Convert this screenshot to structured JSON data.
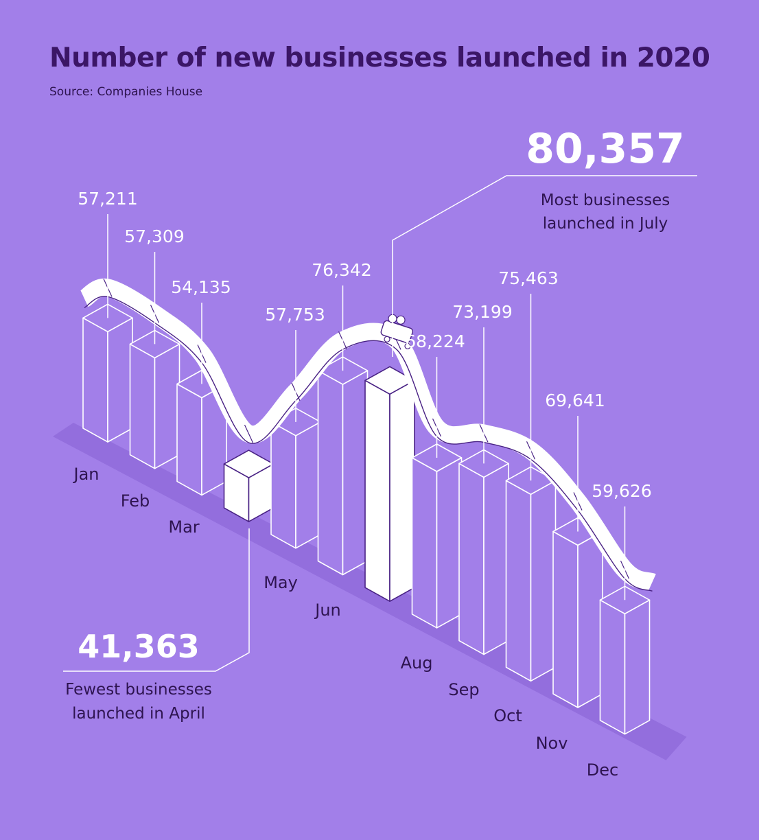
{
  "header": {
    "title": "Number of new businesses launched in 2020",
    "subtitle": "Source: Companies House"
  },
  "colors": {
    "background": "#a27fe9",
    "title": "#3b1666",
    "bar_face": "#a27fe9",
    "highlight_bar": "#ffffff",
    "line": "#ffffff",
    "shadow": "#8e68d8",
    "month_label": "#2e1450"
  },
  "chart_data": {
    "type": "bar",
    "title": "Number of new businesses launched in 2020",
    "categories": [
      "Jan",
      "Feb",
      "Mar",
      "Apr",
      "May",
      "Jun",
      "Jul",
      "Aug",
      "Sep",
      "Oct",
      "Nov",
      "Dec"
    ],
    "category_labels": [
      "Jan",
      "Feb",
      "Mar",
      "",
      "May",
      "Jun",
      "",
      "Aug",
      "Sep",
      "Oct",
      "Nov",
      "Dec"
    ],
    "values": [
      57211,
      57309,
      54135,
      41363,
      57753,
      76342,
      80357,
      68224,
      73199,
      75463,
      69641,
      59626
    ],
    "value_labels": [
      "57,211",
      "57,309",
      "54,135",
      "41,363",
      "57,753",
      "76,342",
      "80,357",
      "68,224",
      "73,199",
      "75,463",
      "69,641",
      "59,626"
    ],
    "highlighted": [
      "Apr",
      "Jul"
    ],
    "annotations": {
      "max": {
        "value": "80,357",
        "text_line1": "Most businesses",
        "text_line2": "launched in July"
      },
      "min": {
        "value": "41,363",
        "text_line1": "Fewest businesses",
        "text_line2": "launched in April"
      }
    }
  }
}
